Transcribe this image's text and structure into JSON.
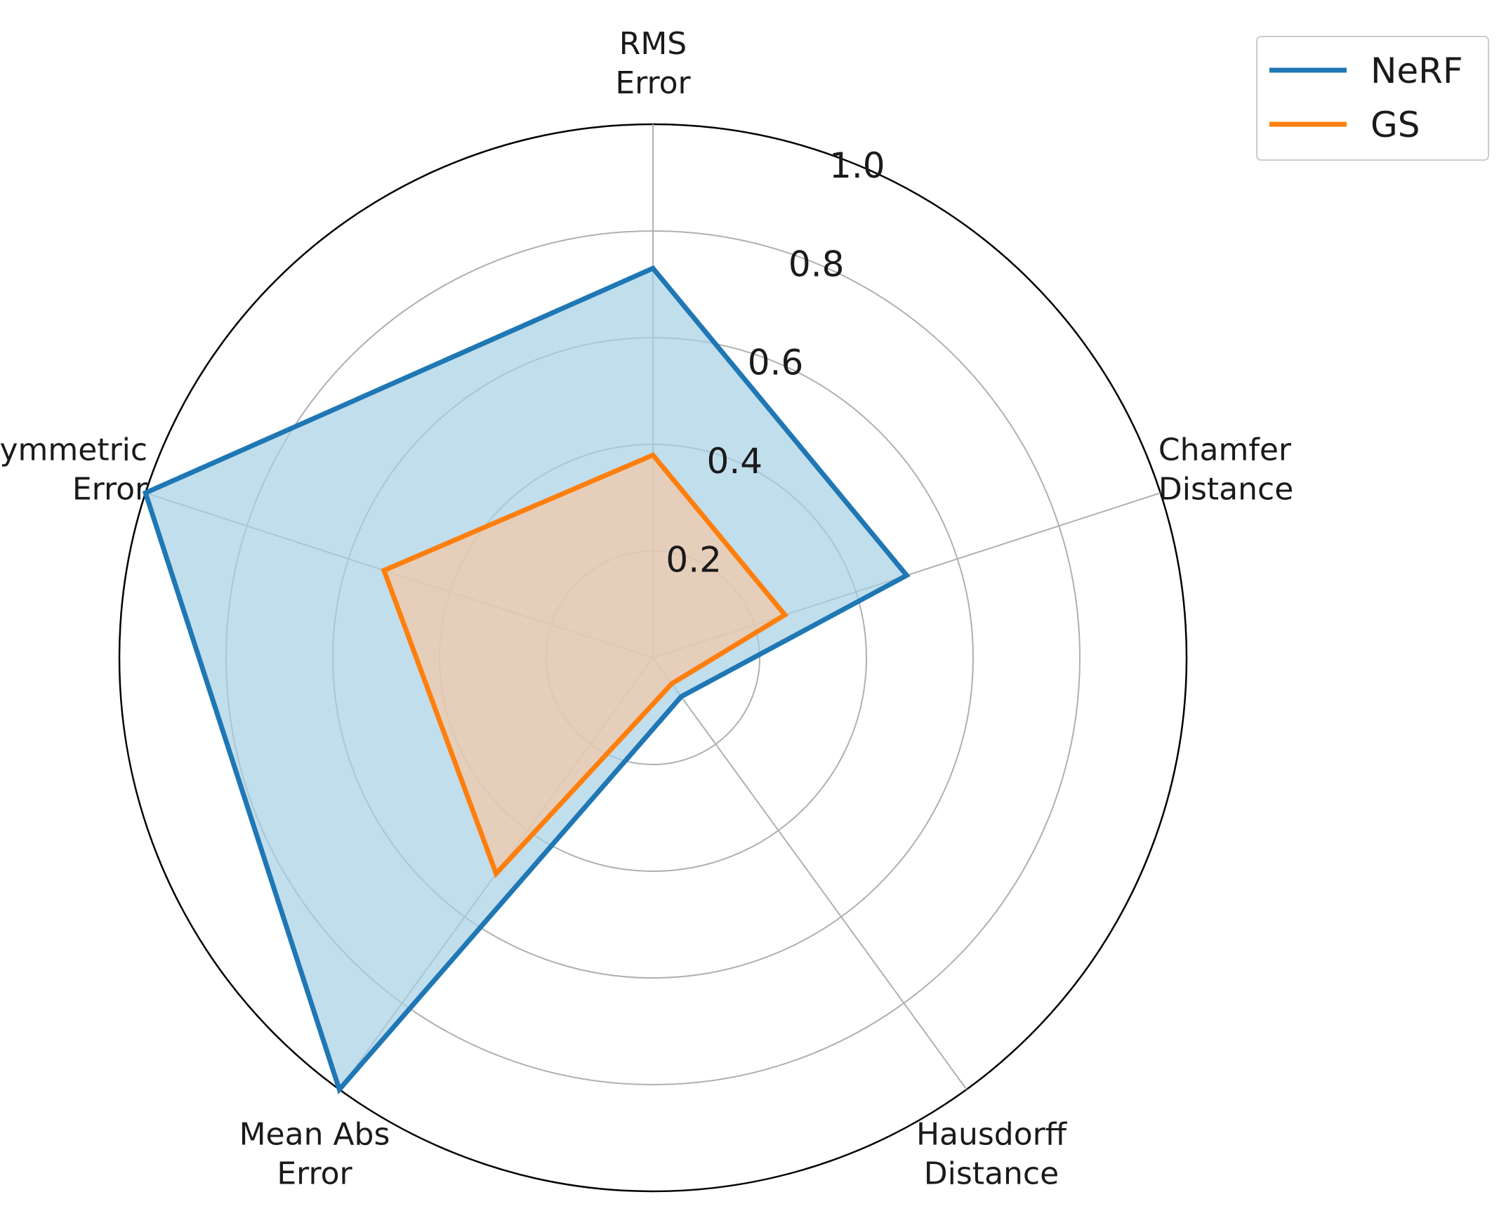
{
  "chart_data": {
    "type": "radar",
    "title": "",
    "categories": [
      [
        "RMS",
        "Error"
      ],
      [
        "Chamfer",
        "Distance"
      ],
      [
        "Hausdorff",
        "Distance"
      ],
      [
        "Mean Abs",
        "Error"
      ],
      [
        "Symmetric",
        "Error"
      ]
    ],
    "rlim": [
      0,
      1.0
    ],
    "ticks": [
      "0.2",
      "0.4",
      "0.6",
      "0.8",
      "1.0"
    ],
    "tick_values": [
      0.2,
      0.4,
      0.6,
      0.8,
      1.0
    ],
    "grid": true,
    "legend_position": "top-right",
    "series": [
      {
        "name": "NeRF",
        "color": "#1f77b4",
        "fill": "#a6d0e6",
        "values": [
          0.73,
          0.5,
          0.09,
          1.0,
          1.0
        ]
      },
      {
        "name": "GS",
        "color": "#ff7f0e",
        "fill": "#f3c9a5",
        "values": [
          0.38,
          0.26,
          0.06,
          0.5,
          0.53
        ]
      }
    ],
    "legend": [
      "NeRF",
      "GS"
    ]
  }
}
